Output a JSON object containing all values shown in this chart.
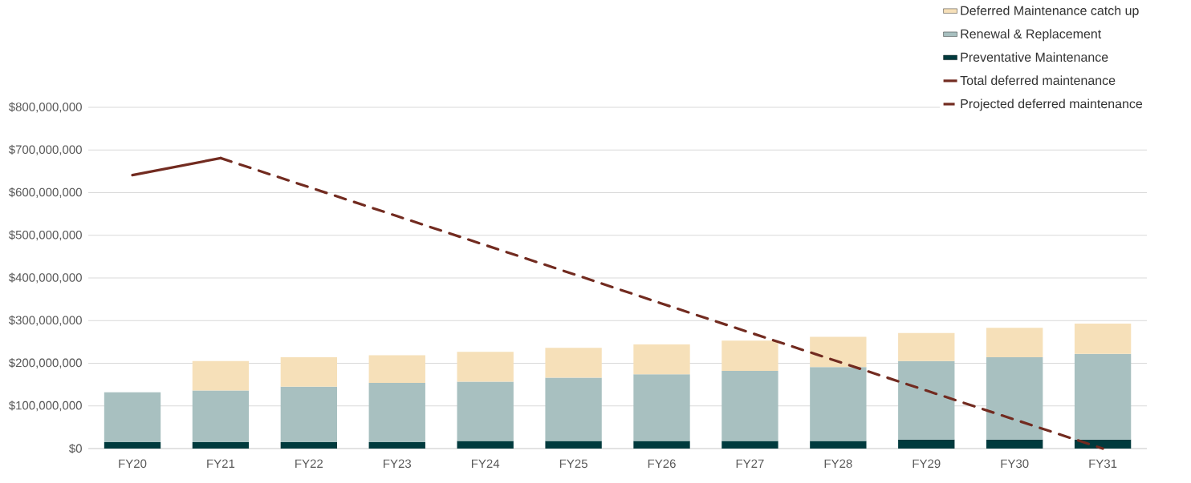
{
  "chart_data": {
    "type": "bar",
    "stacked": true,
    "grid": "y",
    "legend": "top right",
    "categories": [
      "FY20",
      "FY21",
      "FY22",
      "FY23",
      "FY24",
      "FY25",
      "FY26",
      "FY27",
      "FY28",
      "FY29",
      "FY30",
      "FY31"
    ],
    "ylim": [
      0,
      800000000
    ],
    "yticks": [
      {
        "value": 0,
        "label": "$0"
      },
      {
        "value": 100000000,
        "label": "$100,000,000"
      },
      {
        "value": 200000000,
        "label": "$200,000,000"
      },
      {
        "value": 300000000,
        "label": "$300,000,000"
      },
      {
        "value": 400000000,
        "label": "$400,000,000"
      },
      {
        "value": 500000000,
        "label": "$500,000,000"
      },
      {
        "value": 600000000,
        "label": "$600,000,000"
      },
      {
        "value": 700000000,
        "label": "$700,000,000"
      },
      {
        "value": 800000000,
        "label": "$800,000,000"
      }
    ],
    "series": [
      {
        "name": "Preventative Maintenance",
        "color": "#003a3d",
        "values": [
          15000000,
          15000000,
          15000000,
          15000000,
          18000000,
          18000000,
          18000000,
          18000000,
          18000000,
          21000000,
          21000000,
          21000000
        ]
      },
      {
        "name": "Renewal & Replacement",
        "color": "#a8c0c0",
        "values": [
          117000000,
          121000000,
          130000000,
          139000000,
          139000000,
          148000000,
          156000000,
          164000000,
          173000000,
          184000000,
          193000000,
          201000000
        ]
      },
      {
        "name": "Deferred Maintenance catch up",
        "color": "#f6e0b9",
        "values": [
          null,
          69000000,
          69000000,
          65000000,
          70000000,
          70000000,
          70000000,
          71000000,
          71000000,
          66000000,
          69000000,
          71000000
        ]
      },
      {
        "name": "Total deferred maintenance",
        "type": "line",
        "line_style": "solid",
        "color": "#722b20",
        "values": [
          641000000,
          681000000,
          null,
          null,
          null,
          null,
          null,
          null,
          null,
          null,
          null,
          null
        ]
      },
      {
        "name": "Projected deferred maintenance",
        "type": "line",
        "line_style": "dashed",
        "color": "#722b20",
        "values": [
          null,
          681000000,
          613000000,
          545000000,
          477000000,
          409000000,
          340000000,
          272000000,
          204000000,
          136000000,
          68000000,
          0
        ]
      }
    ]
  }
}
